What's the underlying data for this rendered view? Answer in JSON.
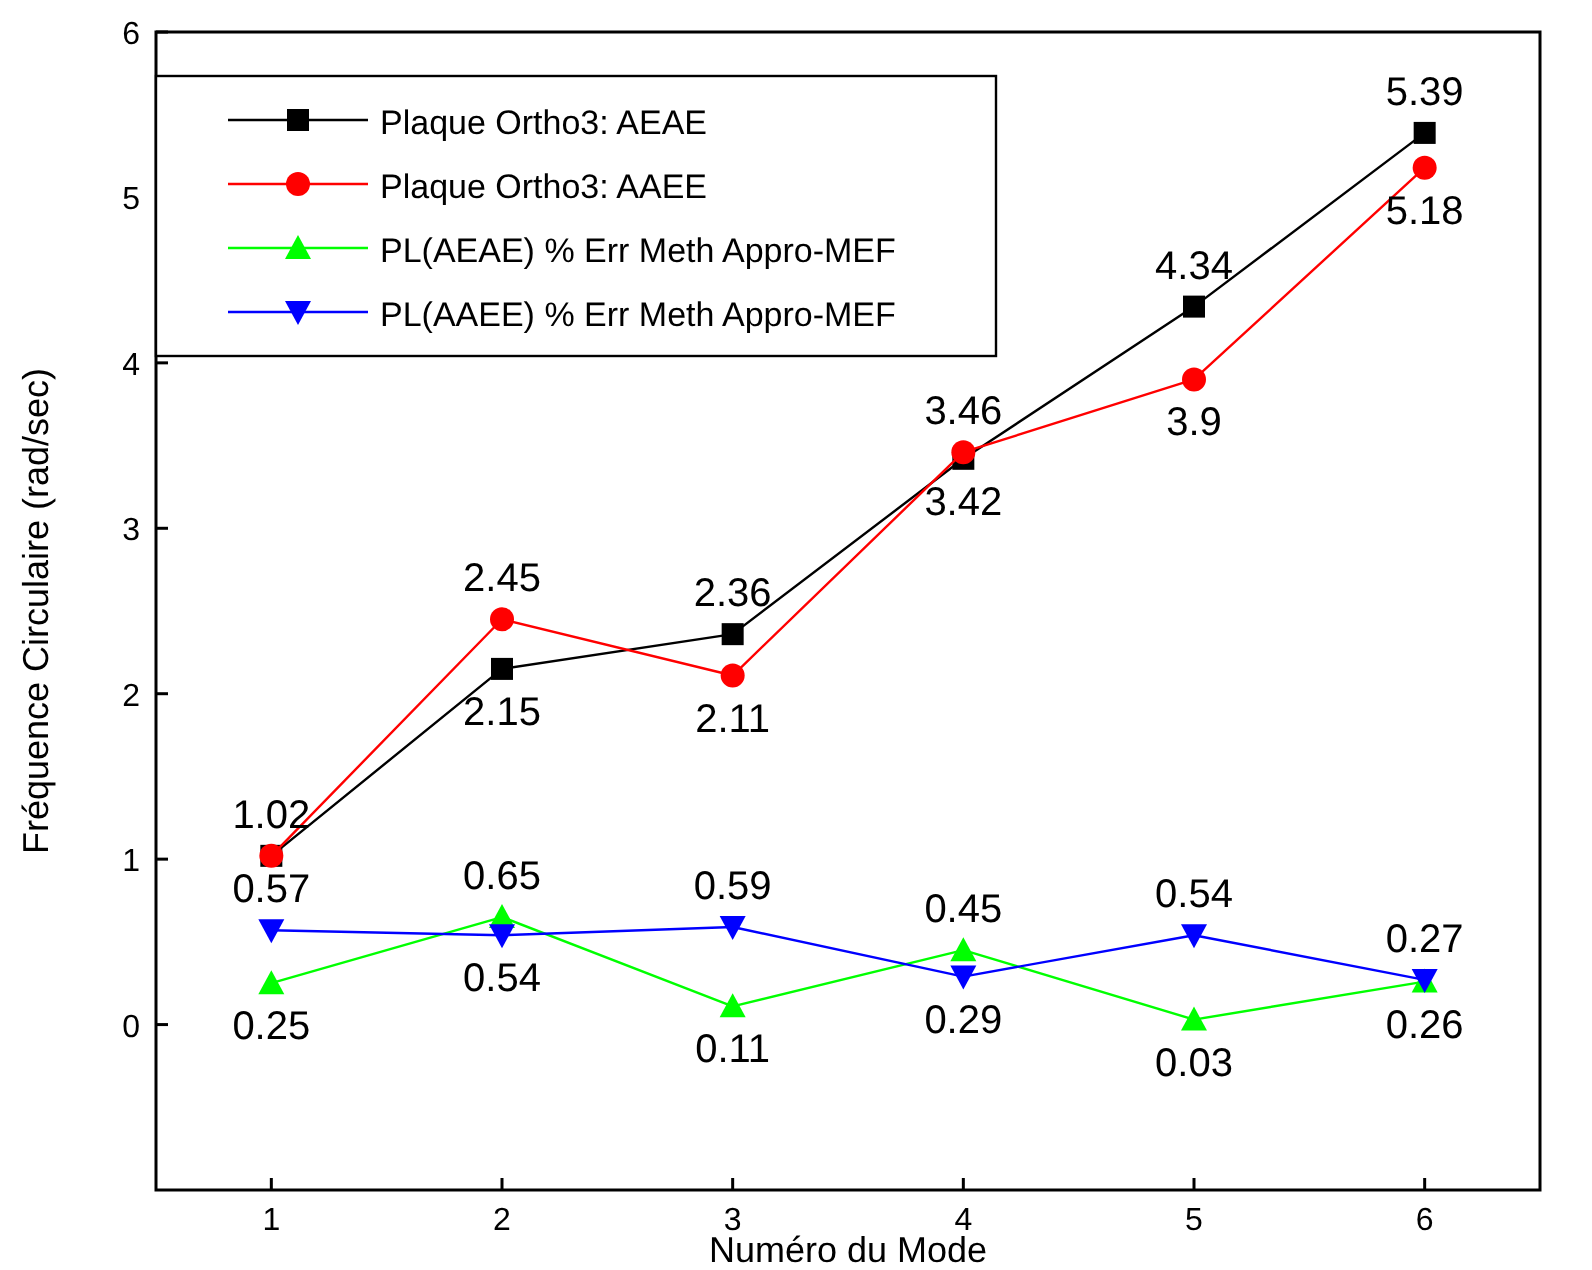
{
  "chart_data": {
    "type": "line",
    "xlabel": "Numéro du Mode",
    "ylabel": "Fréquence Circulaire (rad/sec)",
    "x": [
      1,
      2,
      3,
      4,
      5,
      6
    ],
    "xlim": [
      0.5,
      6.5
    ],
    "xticks": [
      1,
      2,
      3,
      4,
      5,
      6
    ],
    "ylim": [
      -1,
      6
    ],
    "yticks": [
      0,
      1,
      2,
      3,
      4,
      5,
      6
    ],
    "grid": false,
    "legend": "top left",
    "series": [
      {
        "name": "Plaque Ortho3: AEAE",
        "color": "#000000",
        "marker": "square",
        "values": [
          1.02,
          2.15,
          2.36,
          3.42,
          4.34,
          5.39
        ],
        "value_labels": [
          "1.02",
          "2.15",
          "2.36",
          "3.42",
          "4.34",
          "5.39"
        ]
      },
      {
        "name": "Plaque Ortho3: AAEE",
        "color": "#ff0000",
        "marker": "circle",
        "values": [
          1.02,
          2.45,
          2.11,
          3.46,
          3.9,
          5.18
        ],
        "value_labels": [
          null,
          "2.45",
          "2.11",
          "3.46",
          "3.9",
          "5.18"
        ]
      },
      {
        "name": "PL(AEAE) % Err Meth Appro-MEF",
        "color": "#00ff00",
        "marker": "triangle",
        "values": [
          0.25,
          0.65,
          0.11,
          0.45,
          0.03,
          0.26
        ],
        "value_labels": [
          "0.25",
          "0.65",
          "0.11",
          "0.45",
          "0.03",
          "0.26"
        ]
      },
      {
        "name": "PL(AAEE) % Err Meth Appro-MEF",
        "color": "#0000ff",
        "marker": "triangle-down",
        "values": [
          0.57,
          0.54,
          0.59,
          0.29,
          0.54,
          0.27
        ],
        "value_labels": [
          "0.57",
          "0.54",
          "0.59",
          "0.29",
          "0.54",
          "0.27"
        ]
      }
    ]
  }
}
